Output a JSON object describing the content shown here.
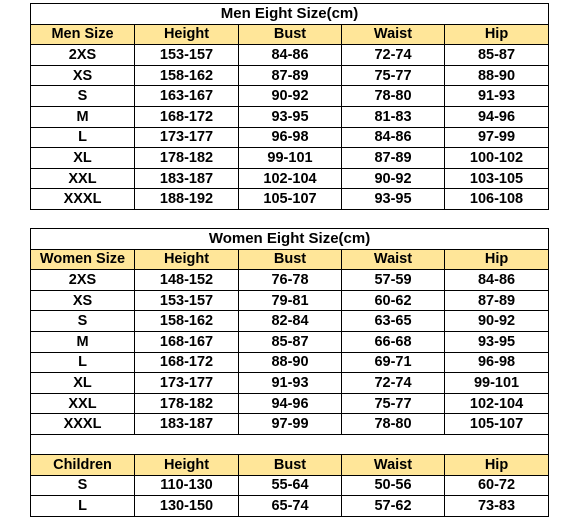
{
  "men": {
    "title": "Men Eight Size(cm)",
    "headers": [
      "Men Size",
      "Height",
      "Bust",
      "Waist",
      "Hip"
    ],
    "rows": [
      [
        "2XS",
        "153-157",
        "84-86",
        "72-74",
        "85-87"
      ],
      [
        "XS",
        "158-162",
        "87-89",
        "75-77",
        "88-90"
      ],
      [
        "S",
        "163-167",
        "90-92",
        "78-80",
        "91-93"
      ],
      [
        "M",
        "168-172",
        "93-95",
        "81-83",
        "94-96"
      ],
      [
        "L",
        "173-177",
        "96-98",
        "84-86",
        "97-99"
      ],
      [
        "XL",
        "178-182",
        "99-101",
        "87-89",
        "100-102"
      ],
      [
        "XXL",
        "183-187",
        "102-104",
        "90-92",
        "103-105"
      ],
      [
        "XXXL",
        "188-192",
        "105-107",
        "93-95",
        "106-108"
      ]
    ]
  },
  "women": {
    "title": "Women Eight Size(cm)",
    "headers": [
      "Women Size",
      "Height",
      "Bust",
      "Waist",
      "Hip"
    ],
    "rows": [
      [
        "2XS",
        "148-152",
        "76-78",
        "57-59",
        "84-86"
      ],
      [
        "XS",
        "153-157",
        "79-81",
        "60-62",
        "87-89"
      ],
      [
        "S",
        "158-162",
        "82-84",
        "63-65",
        "90-92"
      ],
      [
        "M",
        "168-167",
        "85-87",
        "66-68",
        "93-95"
      ],
      [
        "L",
        "168-172",
        "88-90",
        "69-71",
        "96-98"
      ],
      [
        "XL",
        "173-177",
        "91-93",
        "72-74",
        "99-101"
      ],
      [
        "XXL",
        "178-182",
        "94-96",
        "75-77",
        "102-104"
      ],
      [
        "XXXL",
        "183-187",
        "97-99",
        "78-80",
        "105-107"
      ]
    ]
  },
  "children": {
    "headers": [
      "Children",
      "Height",
      "Bust",
      "Waist",
      "Hip"
    ],
    "rows": [
      [
        "S",
        "110-130",
        "55-64",
        "50-56",
        "60-72"
      ],
      [
        "L",
        "130-150",
        "65-74",
        "57-62",
        "73-83"
      ]
    ]
  },
  "colors": {
    "header_fill": "#ffe699",
    "border": "#000000"
  }
}
